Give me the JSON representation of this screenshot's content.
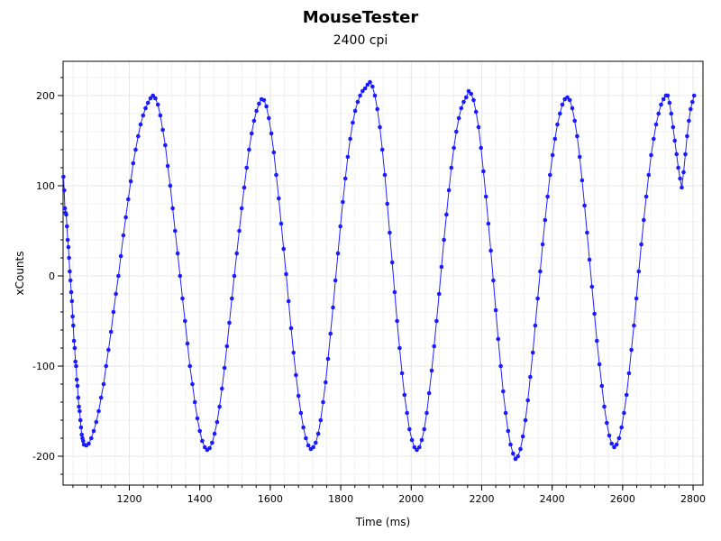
{
  "chart_data": {
    "type": "scatter",
    "title": "MouseTester",
    "subtitle": "2400 cpi",
    "xlabel": "Time (ms)",
    "ylabel": "xCounts",
    "xlim": [
      1012,
      2828
    ],
    "ylim": [
      -232,
      238
    ],
    "x_ticks": [
      1200,
      1400,
      1600,
      1800,
      2000,
      2200,
      2400,
      2600,
      2800
    ],
    "y_ticks": [
      200,
      100,
      0,
      -100,
      -200
    ],
    "grid": true,
    "legend": "none",
    "series": [
      {
        "points": [
          [
            1013,
            110
          ],
          [
            1015,
            95
          ],
          [
            1017,
            75
          ],
          [
            1019,
            70
          ],
          [
            1021,
            68
          ],
          [
            1023,
            55
          ],
          [
            1025,
            40
          ],
          [
            1027,
            32
          ],
          [
            1029,
            20
          ],
          [
            1031,
            5
          ],
          [
            1033,
            -5
          ],
          [
            1035,
            -18
          ],
          [
            1037,
            -28
          ],
          [
            1039,
            -45
          ],
          [
            1041,
            -55
          ],
          [
            1043,
            -72
          ],
          [
            1045,
            -80
          ],
          [
            1047,
            -95
          ],
          [
            1049,
            -100
          ],
          [
            1051,
            -115
          ],
          [
            1053,
            -122
          ],
          [
            1055,
            -135
          ],
          [
            1057,
            -145
          ],
          [
            1059,
            -150
          ],
          [
            1061,
            -160
          ],
          [
            1063,
            -168
          ],
          [
            1065,
            -176
          ],
          [
            1067,
            -180
          ],
          [
            1069,
            -183
          ],
          [
            1071,
            -187
          ],
          [
            1078,
            -188
          ],
          [
            1085,
            -186
          ],
          [
            1092,
            -180
          ],
          [
            1099,
            -172
          ],
          [
            1106,
            -162
          ],
          [
            1113,
            -150
          ],
          [
            1120,
            -135
          ],
          [
            1127,
            -120
          ],
          [
            1134,
            -100
          ],
          [
            1141,
            -82
          ],
          [
            1148,
            -62
          ],
          [
            1155,
            -40
          ],
          [
            1162,
            -20
          ],
          [
            1169,
            0
          ],
          [
            1176,
            22
          ],
          [
            1183,
            45
          ],
          [
            1190,
            65
          ],
          [
            1197,
            85
          ],
          [
            1204,
            105
          ],
          [
            1211,
            125
          ],
          [
            1218,
            140
          ],
          [
            1225,
            155
          ],
          [
            1232,
            168
          ],
          [
            1239,
            178
          ],
          [
            1246,
            186
          ],
          [
            1253,
            192
          ],
          [
            1260,
            197
          ],
          [
            1267,
            200
          ],
          [
            1274,
            197
          ],
          [
            1281,
            190
          ],
          [
            1288,
            178
          ],
          [
            1295,
            162
          ],
          [
            1302,
            145
          ],
          [
            1309,
            122
          ],
          [
            1316,
            100
          ],
          [
            1323,
            75
          ],
          [
            1330,
            50
          ],
          [
            1337,
            25
          ],
          [
            1344,
            0
          ],
          [
            1351,
            -25
          ],
          [
            1358,
            -50
          ],
          [
            1365,
            -75
          ],
          [
            1372,
            -100
          ],
          [
            1379,
            -120
          ],
          [
            1386,
            -140
          ],
          [
            1393,
            -158
          ],
          [
            1400,
            -172
          ],
          [
            1407,
            -183
          ],
          [
            1414,
            -190
          ],
          [
            1421,
            -193
          ],
          [
            1428,
            -191
          ],
          [
            1435,
            -185
          ],
          [
            1442,
            -175
          ],
          [
            1449,
            -162
          ],
          [
            1456,
            -145
          ],
          [
            1463,
            -125
          ],
          [
            1470,
            -102
          ],
          [
            1477,
            -78
          ],
          [
            1484,
            -52
          ],
          [
            1491,
            -25
          ],
          [
            1498,
            0
          ],
          [
            1505,
            25
          ],
          [
            1512,
            50
          ],
          [
            1519,
            75
          ],
          [
            1526,
            98
          ],
          [
            1533,
            120
          ],
          [
            1540,
            140
          ],
          [
            1547,
            158
          ],
          [
            1554,
            172
          ],
          [
            1561,
            183
          ],
          [
            1568,
            191
          ],
          [
            1575,
            196
          ],
          [
            1582,
            195
          ],
          [
            1589,
            188
          ],
          [
            1596,
            175
          ],
          [
            1603,
            158
          ],
          [
            1610,
            137
          ],
          [
            1617,
            112
          ],
          [
            1624,
            86
          ],
          [
            1631,
            58
          ],
          [
            1638,
            30
          ],
          [
            1645,
            2
          ],
          [
            1652,
            -28
          ],
          [
            1659,
            -58
          ],
          [
            1666,
            -85
          ],
          [
            1673,
            -110
          ],
          [
            1680,
            -133
          ],
          [
            1687,
            -152
          ],
          [
            1694,
            -168
          ],
          [
            1701,
            -180
          ],
          [
            1708,
            -188
          ],
          [
            1715,
            -192
          ],
          [
            1722,
            -190
          ],
          [
            1729,
            -185
          ],
          [
            1736,
            -175
          ],
          [
            1743,
            -160
          ],
          [
            1750,
            -140
          ],
          [
            1757,
            -118
          ],
          [
            1764,
            -92
          ],
          [
            1771,
            -64
          ],
          [
            1778,
            -35
          ],
          [
            1785,
            -5
          ],
          [
            1792,
            25
          ],
          [
            1799,
            55
          ],
          [
            1806,
            82
          ],
          [
            1813,
            108
          ],
          [
            1820,
            132
          ],
          [
            1827,
            152
          ],
          [
            1834,
            170
          ],
          [
            1841,
            183
          ],
          [
            1848,
            193
          ],
          [
            1855,
            200
          ],
          [
            1862,
            205
          ],
          [
            1869,
            208
          ],
          [
            1876,
            212
          ],
          [
            1883,
            215
          ],
          [
            1890,
            210
          ],
          [
            1897,
            200
          ],
          [
            1904,
            185
          ],
          [
            1911,
            165
          ],
          [
            1918,
            140
          ],
          [
            1925,
            112
          ],
          [
            1932,
            80
          ],
          [
            1939,
            48
          ],
          [
            1946,
            15
          ],
          [
            1953,
            -18
          ],
          [
            1960,
            -50
          ],
          [
            1967,
            -80
          ],
          [
            1974,
            -108
          ],
          [
            1981,
            -132
          ],
          [
            1988,
            -152
          ],
          [
            1995,
            -170
          ],
          [
            2002,
            -182
          ],
          [
            2009,
            -190
          ],
          [
            2016,
            -193
          ],
          [
            2023,
            -190
          ],
          [
            2030,
            -182
          ],
          [
            2037,
            -170
          ],
          [
            2044,
            -152
          ],
          [
            2051,
            -130
          ],
          [
            2058,
            -105
          ],
          [
            2065,
            -78
          ],
          [
            2072,
            -50
          ],
          [
            2079,
            -20
          ],
          [
            2086,
            10
          ],
          [
            2093,
            40
          ],
          [
            2100,
            68
          ],
          [
            2107,
            95
          ],
          [
            2114,
            120
          ],
          [
            2121,
            142
          ],
          [
            2128,
            160
          ],
          [
            2135,
            175
          ],
          [
            2142,
            186
          ],
          [
            2149,
            193
          ],
          [
            2156,
            198
          ],
          [
            2163,
            205
          ],
          [
            2170,
            202
          ],
          [
            2177,
            195
          ],
          [
            2184,
            182
          ],
          [
            2191,
            165
          ],
          [
            2198,
            142
          ],
          [
            2205,
            116
          ],
          [
            2212,
            88
          ],
          [
            2219,
            58
          ],
          [
            2226,
            28
          ],
          [
            2233,
            -5
          ],
          [
            2240,
            -38
          ],
          [
            2247,
            -70
          ],
          [
            2254,
            -100
          ],
          [
            2261,
            -128
          ],
          [
            2268,
            -152
          ],
          [
            2275,
            -172
          ],
          [
            2282,
            -187
          ],
          [
            2289,
            -197
          ],
          [
            2296,
            -203
          ],
          [
            2303,
            -200
          ],
          [
            2310,
            -192
          ],
          [
            2317,
            -178
          ],
          [
            2324,
            -160
          ],
          [
            2331,
            -138
          ],
          [
            2338,
            -112
          ],
          [
            2345,
            -85
          ],
          [
            2352,
            -55
          ],
          [
            2359,
            -25
          ],
          [
            2366,
            5
          ],
          [
            2373,
            35
          ],
          [
            2380,
            62
          ],
          [
            2387,
            88
          ],
          [
            2394,
            112
          ],
          [
            2401,
            134
          ],
          [
            2408,
            152
          ],
          [
            2415,
            168
          ],
          [
            2422,
            180
          ],
          [
            2429,
            190
          ],
          [
            2436,
            196
          ],
          [
            2443,
            198
          ],
          [
            2450,
            195
          ],
          [
            2457,
            186
          ],
          [
            2464,
            172
          ],
          [
            2471,
            155
          ],
          [
            2478,
            132
          ],
          [
            2485,
            106
          ],
          [
            2492,
            78
          ],
          [
            2499,
            48
          ],
          [
            2506,
            18
          ],
          [
            2513,
            -12
          ],
          [
            2520,
            -42
          ],
          [
            2527,
            -72
          ],
          [
            2534,
            -98
          ],
          [
            2541,
            -122
          ],
          [
            2548,
            -145
          ],
          [
            2555,
            -163
          ],
          [
            2562,
            -177
          ],
          [
            2569,
            -186
          ],
          [
            2576,
            -190
          ],
          [
            2583,
            -187
          ],
          [
            2590,
            -180
          ],
          [
            2597,
            -168
          ],
          [
            2604,
            -152
          ],
          [
            2611,
            -132
          ],
          [
            2618,
            -108
          ],
          [
            2625,
            -82
          ],
          [
            2632,
            -55
          ],
          [
            2639,
            -25
          ],
          [
            2646,
            5
          ],
          [
            2653,
            35
          ],
          [
            2660,
            62
          ],
          [
            2667,
            88
          ],
          [
            2674,
            112
          ],
          [
            2681,
            134
          ],
          [
            2688,
            152
          ],
          [
            2695,
            168
          ],
          [
            2702,
            180
          ],
          [
            2709,
            190
          ],
          [
            2716,
            196
          ],
          [
            2723,
            200
          ],
          [
            2728,
            200
          ],
          [
            2733,
            192
          ],
          [
            2738,
            180
          ],
          [
            2743,
            165
          ],
          [
            2748,
            150
          ],
          [
            2753,
            135
          ],
          [
            2758,
            120
          ],
          [
            2763,
            108
          ],
          [
            2768,
            98
          ],
          [
            2773,
            115
          ],
          [
            2778,
            135
          ],
          [
            2783,
            155
          ],
          [
            2788,
            172
          ],
          [
            2793,
            185
          ],
          [
            2798,
            193
          ],
          [
            2803,
            200
          ]
        ]
      }
    ],
    "colors": {
      "points": "#1a1aff",
      "line": "#2020ff",
      "grid": "#e6e6e6",
      "frame": "#000000"
    }
  }
}
